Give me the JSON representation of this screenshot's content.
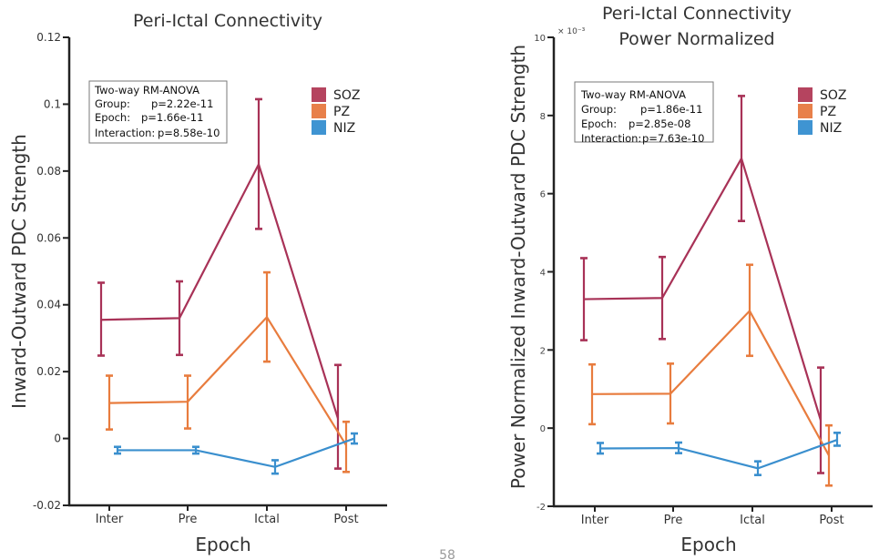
{
  "page_number": "58",
  "chart_data": [
    {
      "type": "line",
      "title": "Peri-Ictal Connectivity",
      "subtitle": "",
      "xlabel": "Epoch",
      "ylabel": "Inward-Outward PDC Strength",
      "categories": [
        "Inter",
        "Pre",
        "Ictal",
        "Post"
      ],
      "ylim": [
        -0.02,
        0.12
      ],
      "yticks": [
        -0.02,
        0,
        0.02,
        0.04,
        0.06,
        0.08,
        0.1,
        0.12
      ],
      "ytick_labels": [
        "-0.02",
        "0",
        "0.02",
        "0.04",
        "0.06",
        "0.08",
        "0.1",
        "0.12"
      ],
      "y_multiplier_label": "",
      "grid": false,
      "legend_position": "top-right",
      "stats_box": {
        "lines": [
          {
            "label": "Two-way RM-ANOVA",
            "value": ""
          },
          {
            "label": "Group:",
            "value": "p=2.22e-11"
          },
          {
            "label": "Epoch:",
            "value": "p=1.66e-11"
          },
          {
            "label": "Interaction:",
            "value": "p=8.58e-10"
          }
        ]
      },
      "series": [
        {
          "name": "SOZ",
          "color": "#a83257",
          "legend_color": "#b5445f",
          "values": [
            0.0355,
            0.036,
            0.082,
            0.006
          ],
          "err_low": [
            0.0248,
            0.025,
            0.0627,
            -0.009
          ],
          "err_high": [
            0.0466,
            0.047,
            0.1015,
            0.022
          ]
        },
        {
          "name": "PZ",
          "color": "#e87c3e",
          "legend_color": "#e8804a",
          "values": [
            0.0106,
            0.011,
            0.0363,
            -0.002
          ],
          "err_low": [
            0.0027,
            0.003,
            0.023,
            -0.01
          ],
          "err_high": [
            0.0188,
            0.0188,
            0.0497,
            0.005
          ]
        },
        {
          "name": "NIZ",
          "color": "#3a8fce",
          "legend_color": "#3f94d2",
          "values": [
            -0.0035,
            -0.0035,
            -0.0085,
            0.0
          ],
          "err_low": [
            -0.0045,
            -0.0045,
            -0.0105,
            -0.0015
          ],
          "err_high": [
            -0.0025,
            -0.0025,
            -0.0065,
            0.0015
          ]
        }
      ]
    },
    {
      "type": "line",
      "title": "Peri-Ictal Connectivity",
      "subtitle": "Power Normalized",
      "xlabel": "Epoch",
      "ylabel": "Power Normalized Inward-Outward PDC Strength",
      "categories": [
        "Inter",
        "Pre",
        "Ictal",
        "Post"
      ],
      "ylim": [
        -2,
        10
      ],
      "yticks": [
        -2,
        0,
        2,
        4,
        6,
        8,
        10
      ],
      "ytick_labels": [
        "-2",
        "0",
        "2",
        "4",
        "6",
        "8",
        "10"
      ],
      "y_multiplier_label": "× 10⁻³",
      "grid": false,
      "legend_position": "top-right",
      "stats_box": {
        "lines": [
          {
            "label": "Two-way RM-ANOVA",
            "value": ""
          },
          {
            "label": "Group:",
            "value": "p=1.86e-11"
          },
          {
            "label": "Epoch:",
            "value": "p=2.85e-08"
          },
          {
            "label": "Interaction:",
            "value": "p=7.63e-10"
          }
        ]
      },
      "series": [
        {
          "name": "SOZ",
          "color": "#a83257",
          "legend_color": "#b5445f",
          "values": [
            3.3,
            3.33,
            6.9,
            0.2
          ],
          "err_low": [
            2.25,
            2.28,
            5.3,
            -1.15
          ],
          "err_high": [
            4.35,
            4.38,
            8.5,
            1.55
          ]
        },
        {
          "name": "PZ",
          "color": "#e87c3e",
          "legend_color": "#e8804a",
          "values": [
            0.87,
            0.88,
            3.0,
            -0.7
          ],
          "err_low": [
            0.1,
            0.12,
            1.85,
            -1.47
          ],
          "err_high": [
            1.63,
            1.65,
            4.18,
            0.07
          ]
        },
        {
          "name": "NIZ",
          "color": "#3a8fce",
          "legend_color": "#3f94d2",
          "values": [
            -0.52,
            -0.51,
            -1.03,
            -0.3
          ],
          "err_low": [
            -0.65,
            -0.64,
            -1.2,
            -0.45
          ],
          "err_high": [
            -0.38,
            -0.37,
            -0.85,
            -0.12
          ]
        }
      ]
    }
  ]
}
